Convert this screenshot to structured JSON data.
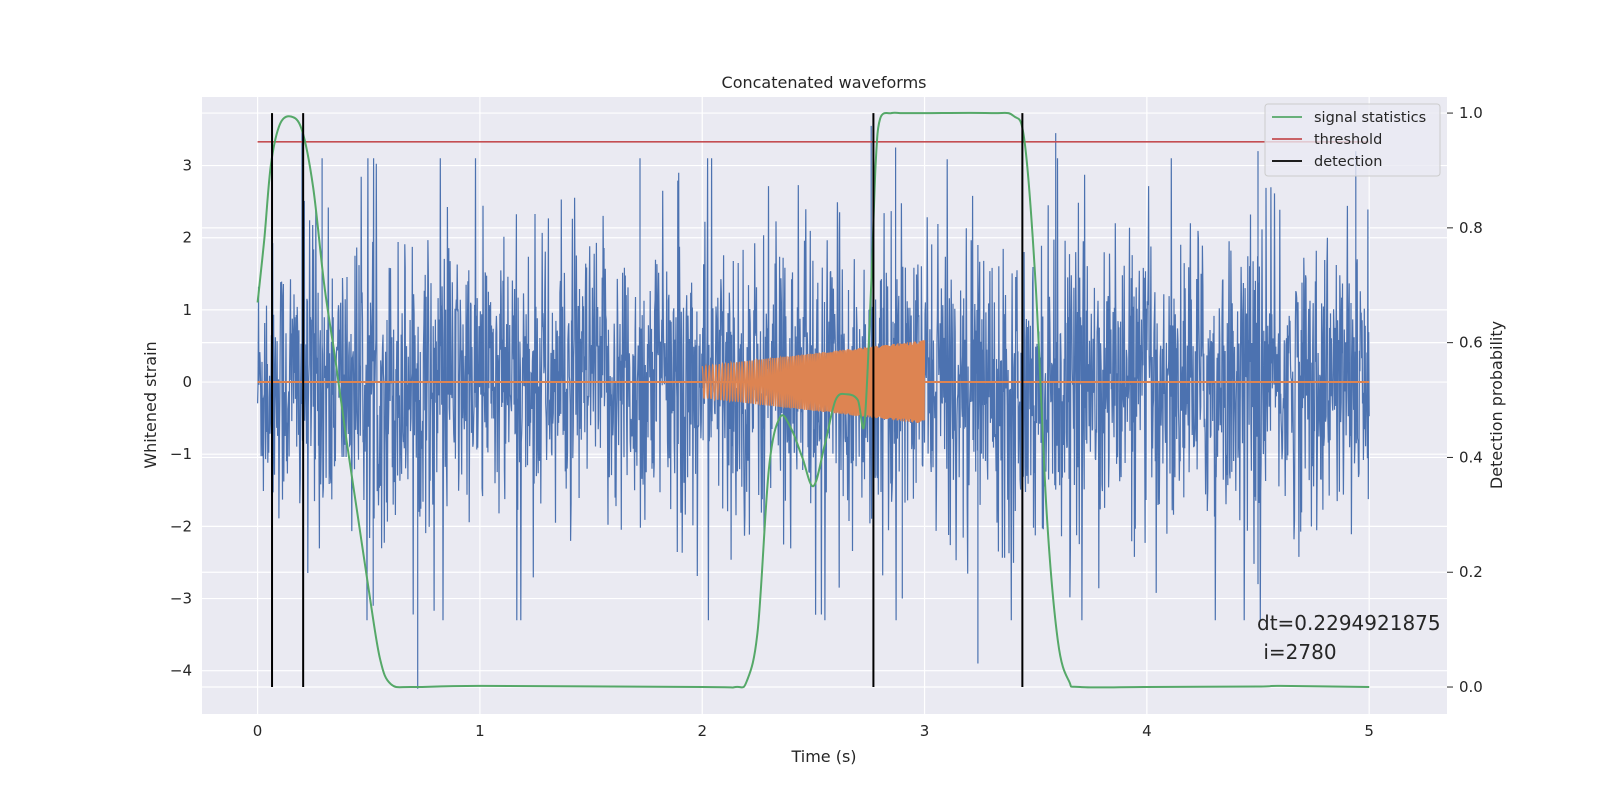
{
  "chart_data": {
    "type": "line",
    "title": "Concatenated waveforms",
    "xlabel": "Time (s)",
    "ylabel": "Whitened strain",
    "y2label": "Detection probability",
    "xlim": [
      -0.25,
      5.35
    ],
    "ylim": [
      -4.6,
      3.95
    ],
    "y2lim": [
      -0.047,
      1.028
    ],
    "x_ticks": [
      0,
      1,
      2,
      3,
      4,
      5
    ],
    "y_ticks": [
      -4,
      -3,
      -2,
      -1,
      0,
      1,
      2,
      3
    ],
    "y2_ticks": [
      0.0,
      0.2,
      0.4,
      0.6,
      0.8,
      1.0
    ],
    "x_tick_labels": [
      "0",
      "1",
      "2",
      "3",
      "4",
      "5"
    ],
    "y_tick_labels": [
      "−4",
      "−3",
      "−2",
      "−1",
      "0",
      "1",
      "2",
      "3"
    ],
    "y2_tick_labels": [
      "0.0",
      "0.2",
      "0.4",
      "0.6",
      "0.8",
      "1.0"
    ],
    "grid": true,
    "legend_position": "top-right",
    "colors": {
      "strain": "#4c72b0",
      "injection": "#dd8452",
      "signal_statistics": "#55a868",
      "threshold": "#c44e52",
      "detection": "#000000",
      "axes_bg": "#eaeaf2",
      "grid": "#ffffff"
    },
    "series": [
      {
        "name": "signal statistics",
        "axis": "right",
        "x": [
          0.0,
          0.03,
          0.06,
          0.1,
          0.15,
          0.2,
          0.25,
          0.3,
          0.35,
          0.4,
          0.45,
          0.5,
          0.55,
          0.6,
          0.7,
          1.0,
          2.0,
          2.15,
          2.2,
          2.25,
          2.3,
          2.35,
          2.4,
          2.45,
          2.5,
          2.55,
          2.6,
          2.65,
          2.7,
          2.73,
          2.76,
          2.78,
          2.8,
          2.85,
          2.9,
          3.0,
          3.3,
          3.4,
          3.45,
          3.5,
          3.55,
          3.6,
          3.65,
          3.7,
          4.0,
          4.5,
          4.6,
          5.0
        ],
        "y": [
          0.67,
          0.78,
          0.91,
          0.98,
          0.994,
          0.97,
          0.87,
          0.7,
          0.57,
          0.43,
          0.3,
          0.17,
          0.05,
          0.005,
          0.0,
          0.002,
          0.0,
          0.0,
          0.01,
          0.1,
          0.38,
          0.47,
          0.45,
          0.4,
          0.35,
          0.42,
          0.5,
          0.51,
          0.5,
          0.46,
          0.7,
          0.91,
          0.99,
          1.0,
          1.0,
          1.0,
          1.0,
          0.995,
          0.95,
          0.7,
          0.3,
          0.08,
          0.01,
          0.0,
          0.0,
          0.001,
          0.002,
          0.0
        ]
      },
      {
        "name": "threshold",
        "axis": "right",
        "x": [
          0.0,
          5.0
        ],
        "y": [
          0.95,
          0.95
        ]
      },
      {
        "name": "detection",
        "axis": "right",
        "x": [
          0.065,
          0.205,
          2.77,
          3.44
        ],
        "y_range": [
          0.0,
          1.0
        ]
      },
      {
        "axis": "left",
        "description_values": {
          "x_range": [
            0.0,
            5.0
          ],
          "typical_amplitude": 1.4,
          "dense_band": [
            -1.0,
            0.8
          ],
          "notable_peaks": [
            [
              0.2,
              3.5
            ],
            [
              0.29,
              3.1
            ],
            [
              1.72,
              3.1
            ],
            [
              2.76,
              3.55
            ],
            [
              2.87,
              3.25
            ],
            [
              3.59,
              3.45
            ],
            [
              4.5,
              3.2
            ],
            [
              4.94,
              3.2
            ]
          ],
          "notable_troughs": [
            [
              0.72,
              -4.25
            ],
            [
              0.52,
              -3.1
            ],
            [
              3.24,
              -3.9
            ],
            [
              2.9,
              -3.0
            ],
            [
              4.5,
              -2.8
            ]
          ]
        }
      },
      {
        "axis": "left",
        "description_values": {
          "x_range": [
            2.0,
            3.0
          ],
          "start_amplitude": 0.22,
          "end_amplitude": 0.58,
          "flat_level": 0.0
        }
      }
    ],
    "annotations": [
      {
        "text": "dt=0.2294921875",
        "x": 4.5,
        "y": -3.3
      },
      {
        "text": " i=2780",
        "x": 4.5,
        "y": -3.68
      }
    ]
  }
}
